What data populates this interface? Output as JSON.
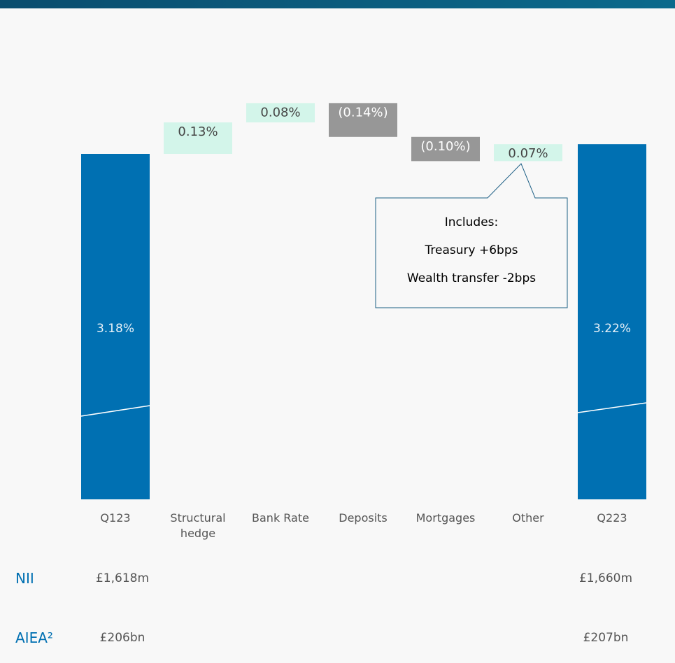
{
  "chart_data": {
    "type": "waterfall",
    "categories": [
      "Q123",
      "Structural hedge",
      "Bank Rate",
      "Deposits",
      "Mortgages",
      "Other",
      "Q223"
    ],
    "measure": [
      "absolute",
      "relative",
      "relative",
      "relative",
      "relative",
      "relative",
      "absolute"
    ],
    "values": [
      3.18,
      0.13,
      0.08,
      -0.14,
      -0.1,
      0.07,
      3.22
    ],
    "value_labels": [
      "3.18%",
      "0.13%",
      "0.08%",
      "(0.14%)",
      "(0.10%)",
      "0.07%",
      "3.22%"
    ],
    "total_color": "#0070b2",
    "increase_color": "#d3f5ea",
    "decrease_color": "#979797",
    "annotation": {
      "lines": [
        "Includes:",
        "Treasury +6bps",
        "Wealth transfer -2bps"
      ]
    }
  },
  "table": {
    "rows": [
      {
        "label": "NII",
        "values": [
          "£1,618m",
          "£1,660m"
        ]
      },
      {
        "label": "AIEA²",
        "values": [
          "£206bn",
          "£207bn"
        ]
      }
    ]
  }
}
